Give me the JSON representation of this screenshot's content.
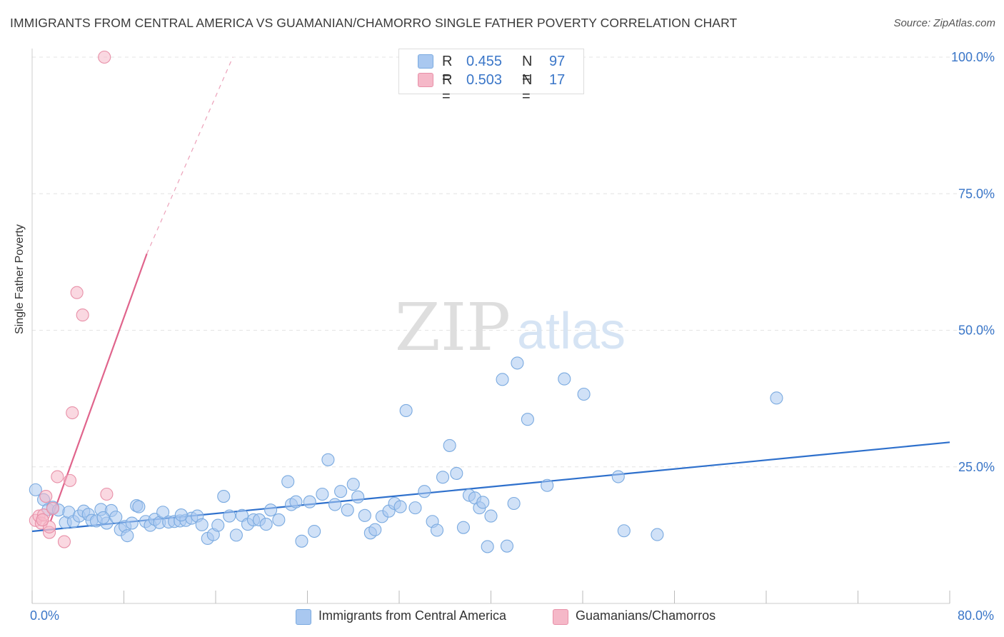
{
  "title": "IMMIGRANTS FROM CENTRAL AMERICA VS GUAMANIAN/CHAMORRO SINGLE FATHER POVERTY CORRELATION CHART",
  "source": "Source: ZipAtlas.com",
  "watermark": {
    "zip": "ZIP",
    "atlas": "atlas"
  },
  "legend": {
    "rows": [
      {
        "r_label": "R =",
        "r_value": "0.455",
        "n_label": "N =",
        "n_value": "97",
        "color": "#a9c8f0"
      },
      {
        "r_label": "R =",
        "r_value": "0.503",
        "n_label": "N =",
        "n_value": "17",
        "color": "#f5b8c8"
      }
    ]
  },
  "bottom_legend": [
    {
      "label": "Immigrants from Central America",
      "color": "#a9c8f0"
    },
    {
      "label": "Guamanians/Chamorros",
      "color": "#f5b8c8"
    }
  ],
  "x_axis": {
    "min_label": "0.0%",
    "max_label": "80.0%"
  },
  "y_axis_label": "Single Father Poverty",
  "chart_data": {
    "type": "scatter",
    "title": "IMMIGRANTS FROM CENTRAL AMERICA VS GUAMANIAN/CHAMORRO SINGLE FATHER POVERTY CORRELATION CHART",
    "xlabel": "",
    "ylabel": "Single Father Poverty",
    "xlim": [
      0,
      80
    ],
    "ylim": [
      0,
      100
    ],
    "y_ticks": [
      {
        "value": 25,
        "label": "25.0%"
      },
      {
        "value": 50,
        "label": "50.0%"
      },
      {
        "value": 75,
        "label": "75.0%"
      },
      {
        "value": 100,
        "label": "100.0%"
      }
    ],
    "x_tick_values": [
      0,
      8,
      16,
      24,
      32,
      40,
      48,
      56,
      64,
      72,
      80
    ],
    "grid": true,
    "series": [
      {
        "name": "Immigrants from Central America",
        "color": "#a9c8f0",
        "stroke": "#7aaae0",
        "trend": {
          "x0": 0,
          "y0": 13.2,
          "x1": 80,
          "y1": 29.5,
          "color": "#2e70cc",
          "dashed_to": null
        },
        "points": [
          [
            0.3,
            20.8
          ],
          [
            1.0,
            19.0
          ],
          [
            1.4,
            17.2
          ],
          [
            1.8,
            17.6
          ],
          [
            2.3,
            17.1
          ],
          [
            2.9,
            14.8
          ],
          [
            3.2,
            16.7
          ],
          [
            3.6,
            15.0
          ],
          [
            4.1,
            16.0
          ],
          [
            4.5,
            16.9
          ],
          [
            4.9,
            16.3
          ],
          [
            5.2,
            15.2
          ],
          [
            5.6,
            15.1
          ],
          [
            6.0,
            17.2
          ],
          [
            6.5,
            14.7
          ],
          [
            6.9,
            17.0
          ],
          [
            7.3,
            15.8
          ],
          [
            7.7,
            13.5
          ],
          [
            8.1,
            14.1
          ],
          [
            8.3,
            12.4
          ],
          [
            8.7,
            14.7
          ],
          [
            9.1,
            17.9
          ],
          [
            9.3,
            17.7
          ],
          [
            9.9,
            15.0
          ],
          [
            10.3,
            14.3
          ],
          [
            10.7,
            15.4
          ],
          [
            11.1,
            14.8
          ],
          [
            11.4,
            16.7
          ],
          [
            11.9,
            14.9
          ],
          [
            12.4,
            15.0
          ],
          [
            12.9,
            15.1
          ],
          [
            13.4,
            15.2
          ],
          [
            13.9,
            15.6
          ],
          [
            14.4,
            16.0
          ],
          [
            14.8,
            14.4
          ],
          [
            15.3,
            11.9
          ],
          [
            15.8,
            12.6
          ],
          [
            16.2,
            14.3
          ],
          [
            16.7,
            19.6
          ],
          [
            17.2,
            16.0
          ],
          [
            17.8,
            12.5
          ],
          [
            18.3,
            16.1
          ],
          [
            18.8,
            14.5
          ],
          [
            19.3,
            15.3
          ],
          [
            19.8,
            15.3
          ],
          [
            20.4,
            14.5
          ],
          [
            20.8,
            17.1
          ],
          [
            21.5,
            15.3
          ],
          [
            22.3,
            22.3
          ],
          [
            22.6,
            18.1
          ],
          [
            23.0,
            18.6
          ],
          [
            23.5,
            11.4
          ],
          [
            24.2,
            18.6
          ],
          [
            24.6,
            13.2
          ],
          [
            25.3,
            20.0
          ],
          [
            25.8,
            26.3
          ],
          [
            26.4,
            18.1
          ],
          [
            26.9,
            20.5
          ],
          [
            27.5,
            17.1
          ],
          [
            28.0,
            21.8
          ],
          [
            28.4,
            19.5
          ],
          [
            29.0,
            16.1
          ],
          [
            29.5,
            12.9
          ],
          [
            29.9,
            13.5
          ],
          [
            30.5,
            15.9
          ],
          [
            31.1,
            16.9
          ],
          [
            31.6,
            18.3
          ],
          [
            32.1,
            17.7
          ],
          [
            32.6,
            35.3
          ],
          [
            33.4,
            17.5
          ],
          [
            34.2,
            20.5
          ],
          [
            34.9,
            15.0
          ],
          [
            35.3,
            13.4
          ],
          [
            35.8,
            23.1
          ],
          [
            36.4,
            28.9
          ],
          [
            37.0,
            23.8
          ],
          [
            37.6,
            13.9
          ],
          [
            38.1,
            19.8
          ],
          [
            38.6,
            19.3
          ],
          [
            39.0,
            17.5
          ],
          [
            39.3,
            18.5
          ],
          [
            39.7,
            10.4
          ],
          [
            41.0,
            41.0
          ],
          [
            41.4,
            10.5
          ],
          [
            42.0,
            18.3
          ],
          [
            43.2,
            33.7
          ],
          [
            44.9,
            21.6
          ],
          [
            46.4,
            41.1
          ],
          [
            48.1,
            38.3
          ],
          [
            51.1,
            23.2
          ],
          [
            51.6,
            13.3
          ],
          [
            54.5,
            12.6
          ],
          [
            64.9,
            37.6
          ],
          [
            42.3,
            44.0
          ],
          [
            40.0,
            16.0
          ],
          [
            13.0,
            16.2
          ],
          [
            6.2,
            15.7
          ]
        ]
      },
      {
        "name": "Guamanians/Chamorros",
        "color": "#f5b8c8",
        "stroke": "#e890a8",
        "trend": {
          "x0": 1.6,
          "y0": 15.0,
          "x1": 10.0,
          "y1": 64.0,
          "color": "#e0648c",
          "dashed_to": {
            "x": 17.5,
            "y": 100
          }
        },
        "points": [
          [
            0.3,
            15.2
          ],
          [
            0.6,
            16.0
          ],
          [
            0.8,
            14.7
          ],
          [
            1.0,
            16.2
          ],
          [
            1.2,
            19.6
          ],
          [
            1.5,
            13.0
          ],
          [
            1.8,
            17.4
          ],
          [
            2.2,
            23.2
          ],
          [
            2.8,
            11.3
          ],
          [
            3.3,
            22.5
          ],
          [
            3.5,
            34.9
          ],
          [
            3.9,
            56.9
          ],
          [
            4.4,
            52.8
          ],
          [
            6.5,
            20.0
          ],
          [
            6.3,
            100.0
          ],
          [
            1.5,
            14.0
          ],
          [
            0.9,
            15.3
          ]
        ]
      }
    ]
  }
}
